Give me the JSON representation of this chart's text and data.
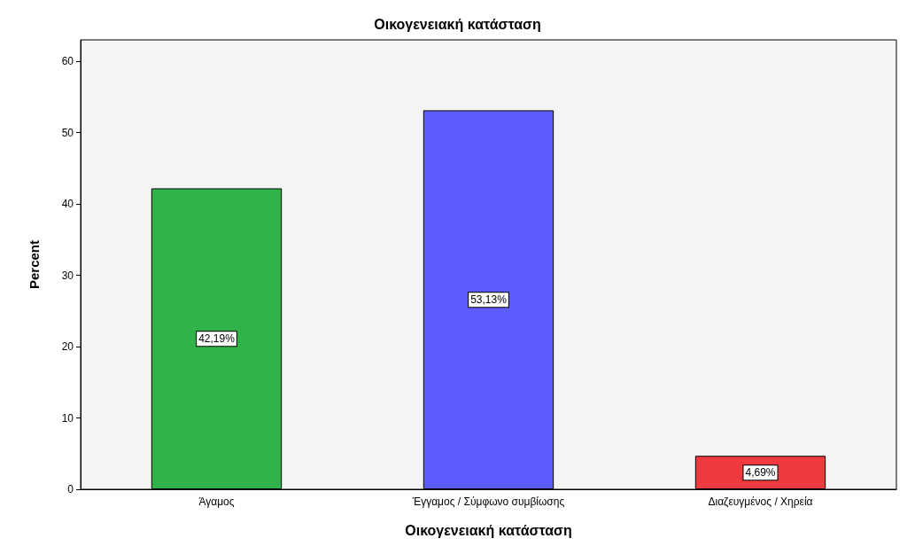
{
  "chart_data": {
    "type": "bar",
    "title": "Οικογενειακή κατάσταση",
    "xlabel": "Οικογενειακή κατάσταση",
    "ylabel": "Percent",
    "categories": [
      "Άγαμος",
      "Έγγαμος / Σύμφωνο συμβίωσης",
      "Διαζευγμένος / Χηρεία"
    ],
    "values": [
      42.19,
      53.13,
      4.69
    ],
    "colors": [
      "#2fb34a",
      "#5c5cff",
      "#ee3a3f"
    ],
    "value_labels": [
      "42,19%",
      "53,13%",
      "4,69%"
    ],
    "ylim": [
      0,
      63
    ],
    "yticks": [
      0,
      10,
      20,
      30,
      40,
      50,
      60
    ],
    "grid": false
  }
}
